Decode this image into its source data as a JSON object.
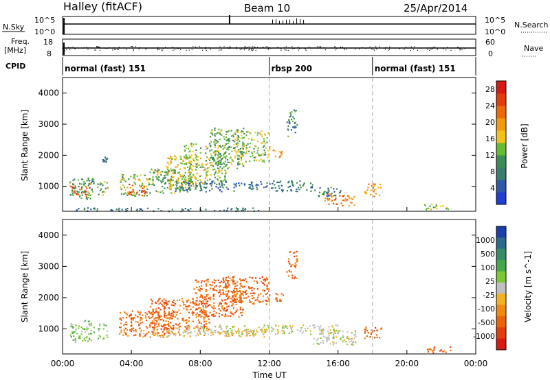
{
  "header": {
    "station": "Halley (fitACF)",
    "beam": "Beam 10",
    "date": "25/Apr/2014"
  },
  "noise_panel": {
    "left_label": "N.Sky",
    "left_ticks": [
      "10^5",
      "10^0"
    ],
    "right_label": "N.Search",
    "right_ticks": [
      "10^5",
      "10^0"
    ]
  },
  "freq_panel": {
    "left_label_1": "Freq.",
    "left_label_2": "[MHz]",
    "left_ticks": [
      "18",
      "8"
    ],
    "right_label": "Nave",
    "right_ticks": [
      "60",
      "0"
    ]
  },
  "cpid": {
    "label": "CPID",
    "segments": [
      {
        "name": "normal (fast) 151",
        "start_h": 0
      },
      {
        "name": "rbsp 200",
        "start_h": 12
      },
      {
        "name": "normal (fast) 151",
        "start_h": 18
      }
    ]
  },
  "colors": {
    "power_scale": [
      "#1f3fd0",
      "#2d5aa8",
      "#3a7d6e",
      "#3d8c55",
      "#66bb33",
      "#f2c21b",
      "#f39a10",
      "#ec6a08",
      "#e43d0c",
      "#d81a14"
    ],
    "velocity_scale": [
      "#1b3fa8",
      "#2b6a8c",
      "#3a8c66",
      "#46a84a",
      "#7cc833",
      "#c0c0c0",
      "#f2b21b",
      "#f38a10",
      "#ec6308",
      "#e43d0c",
      "#d81a14"
    ]
  },
  "chart_data": [
    {
      "type": "heatmap",
      "panel": "power",
      "x_unit": "hours UT",
      "xlim": [
        0,
        24
      ],
      "ylim": [
        200,
        4500
      ],
      "ylabel": "Slant Range [km]",
      "y_ticks": [
        1000,
        2000,
        3000,
        4000
      ],
      "colorbar": {
        "label": "Power [dB]",
        "ticks": [
          4,
          8,
          12,
          16,
          20,
          24,
          28
        ],
        "range": [
          0,
          30
        ]
      },
      "dashed_lines_h": [
        12,
        18
      ],
      "regions": [
        {
          "t0": 0.4,
          "t1": 1.6,
          "r0": 700,
          "r1": 1100,
          "value": 26
        },
        {
          "t0": 0.4,
          "t1": 1.8,
          "r0": 600,
          "r1": 1300,
          "value": 10
        },
        {
          "t0": 2.0,
          "t1": 2.6,
          "r0": 700,
          "r1": 1200,
          "value": 12
        },
        {
          "t0": 2.3,
          "t1": 2.6,
          "r0": 1800,
          "r1": 2000,
          "value": 6
        },
        {
          "t0": 3.3,
          "t1": 5.0,
          "r0": 700,
          "r1": 1400,
          "value": 14
        },
        {
          "t0": 3.8,
          "t1": 4.8,
          "r0": 700,
          "r1": 1100,
          "value": 26
        },
        {
          "t0": 5.0,
          "t1": 6.8,
          "r0": 800,
          "r1": 1600,
          "value": 12
        },
        {
          "t0": 6.0,
          "t1": 7.8,
          "r0": 900,
          "r1": 2000,
          "value": 16
        },
        {
          "t0": 7.0,
          "t1": 9.5,
          "r0": 1100,
          "r1": 2400,
          "value": 14
        },
        {
          "t0": 8.5,
          "t1": 10.5,
          "r0": 1600,
          "r1": 2900,
          "value": 12
        },
        {
          "t0": 10.0,
          "t1": 12.0,
          "r0": 1800,
          "r1": 2800,
          "value": 14
        },
        {
          "t0": 12.2,
          "t1": 12.8,
          "r0": 1900,
          "r1": 2200,
          "value": 20
        },
        {
          "t0": 6.5,
          "t1": 14.5,
          "r0": 850,
          "r1": 1200,
          "value": 6
        },
        {
          "t0": 14.5,
          "t1": 16.3,
          "r0": 700,
          "r1": 1000,
          "value": 8
        },
        {
          "t0": 15.2,
          "t1": 17.0,
          "r0": 400,
          "r1": 800,
          "value": 22
        },
        {
          "t0": 17.5,
          "t1": 18.5,
          "r0": 700,
          "r1": 1100,
          "value": 20
        },
        {
          "t0": 21.0,
          "t1": 22.5,
          "r0": 250,
          "r1": 450,
          "value": 14
        },
        {
          "t0": 13.0,
          "t1": 13.6,
          "r0": 2600,
          "r1": 3500,
          "value": 8
        },
        {
          "t0": 0.5,
          "t1": 11.5,
          "r0": 220,
          "r1": 330,
          "value": 6
        }
      ]
    },
    {
      "type": "heatmap",
      "panel": "velocity",
      "x_unit": "hours UT",
      "xlim": [
        0,
        24
      ],
      "ylim": [
        200,
        4500
      ],
      "ylabel": "Slant Range [km]",
      "xlabel": "Time UT",
      "x_tick_labels": [
        "00:00",
        "04:00",
        "08:00",
        "12:00",
        "16:00",
        "20:00",
        "00:00"
      ],
      "x_tick_hours": [
        0,
        4,
        8,
        12,
        16,
        20,
        24
      ],
      "y_ticks": [
        1000,
        2000,
        3000,
        4000
      ],
      "colorbar": {
        "label": "Velocity [m s^-1]",
        "ticks": [
          "1000",
          "500",
          "100",
          "25",
          "-25",
          "-100",
          "-500",
          "-1000"
        ]
      },
      "dashed_lines_h": [
        12,
        18
      ],
      "regions": [
        {
          "t0": 0.4,
          "t1": 1.8,
          "r0": 600,
          "r1": 1300,
          "value": 30
        },
        {
          "t0": 2.0,
          "t1": 2.6,
          "r0": 700,
          "r1": 1200,
          "value": 80
        },
        {
          "t0": 3.2,
          "t1": 6.5,
          "r0": 800,
          "r1": 1600,
          "value": -300
        },
        {
          "t0": 5.0,
          "t1": 8.5,
          "r0": 1000,
          "r1": 2000,
          "value": -300
        },
        {
          "t0": 7.5,
          "t1": 10.5,
          "r0": 1400,
          "r1": 2600,
          "value": -200
        },
        {
          "t0": 9.0,
          "t1": 12.0,
          "r0": 1800,
          "r1": 2700,
          "value": -100
        },
        {
          "t0": 12.3,
          "t1": 12.8,
          "r0": 1900,
          "r1": 2200,
          "value": -300
        },
        {
          "t0": 4.5,
          "t1": 12.0,
          "r0": 750,
          "r1": 1000,
          "value": -60
        },
        {
          "t0": 6.0,
          "t1": 16.0,
          "r0": 850,
          "r1": 1150,
          "value": 0
        },
        {
          "t0": 14.5,
          "t1": 17.0,
          "r0": 500,
          "r1": 1000,
          "value": 0
        },
        {
          "t0": 17.5,
          "t1": 18.5,
          "r0": 700,
          "r1": 1100,
          "value": -100
        },
        {
          "t0": 21.0,
          "t1": 22.5,
          "r0": 250,
          "r1": 450,
          "value": -100
        },
        {
          "t0": 13.0,
          "t1": 13.6,
          "r0": 2600,
          "r1": 3500,
          "value": -300
        }
      ]
    }
  ]
}
